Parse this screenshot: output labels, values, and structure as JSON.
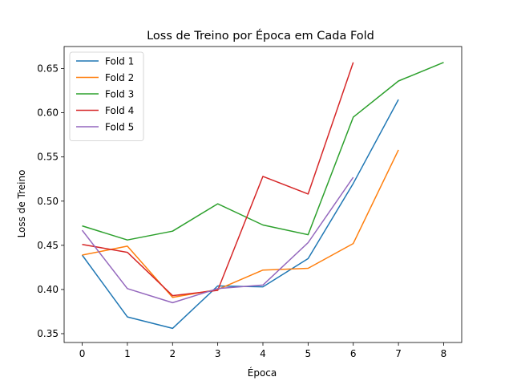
{
  "chart_data": {
    "type": "line",
    "title": "Loss de Treino por Época em Cada Fold",
    "xlabel": "Época",
    "ylabel": "Loss de Treino",
    "xlim": [
      -0.4,
      8.4
    ],
    "ylim": [
      0.34,
      0.675
    ],
    "xticks": [
      0,
      1,
      2,
      3,
      4,
      5,
      6,
      7,
      8
    ],
    "yticks": [
      0.35,
      0.4,
      0.45,
      0.5,
      0.55,
      0.6,
      0.65
    ],
    "ytick_labels": [
      "0.35",
      "0.40",
      "0.45",
      "0.50",
      "0.55",
      "0.60",
      "0.65"
    ],
    "grid": false,
    "legend_position": "top-left",
    "series": [
      {
        "name": "Fold 1",
        "color": "#1f77b4",
        "x": [
          0,
          1,
          2,
          3,
          4,
          5,
          6,
          7
        ],
        "y": [
          0.439,
          0.369,
          0.356,
          0.404,
          0.403,
          0.435,
          0.52,
          0.615
        ]
      },
      {
        "name": "Fold 2",
        "color": "#ff7f0e",
        "x": [
          0,
          1,
          2,
          3,
          4,
          5,
          6,
          7
        ],
        "y": [
          0.439,
          0.449,
          0.391,
          0.4,
          0.422,
          0.424,
          0.452,
          0.558
        ]
      },
      {
        "name": "Fold 3",
        "color": "#2ca02c",
        "x": [
          0,
          1,
          2,
          3,
          4,
          5,
          6,
          7,
          8
        ],
        "y": [
          0.472,
          0.456,
          0.466,
          0.497,
          0.473,
          0.462,
          0.595,
          0.636,
          0.657
        ]
      },
      {
        "name": "Fold 4",
        "color": "#d62728",
        "x": [
          0,
          1,
          2,
          3,
          4,
          5,
          6
        ],
        "y": [
          0.451,
          0.442,
          0.393,
          0.399,
          0.528,
          0.508,
          0.657
        ]
      },
      {
        "name": "Fold 5",
        "color": "#9467bd",
        "x": [
          0,
          1,
          2,
          3,
          4,
          5,
          6
        ],
        "y": [
          0.467,
          0.401,
          0.385,
          0.401,
          0.405,
          0.453,
          0.527
        ]
      }
    ]
  }
}
